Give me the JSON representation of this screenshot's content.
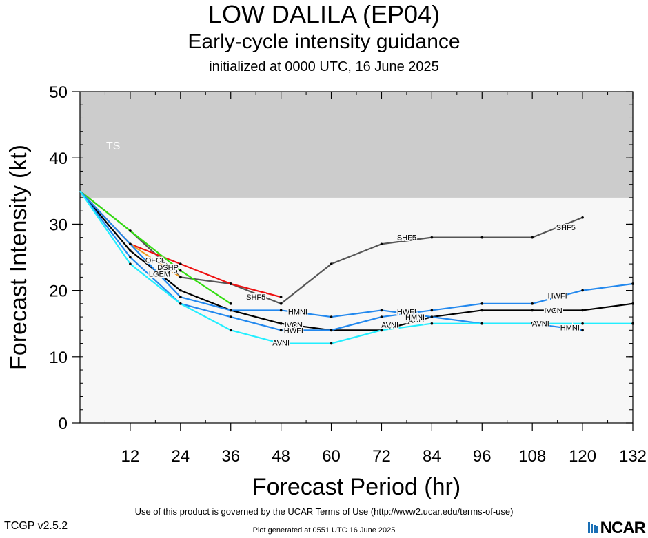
{
  "header": {
    "title": "LOW DALILA (EP04)",
    "subtitle": "Early-cycle intensity guidance",
    "initialized": "initialized at 0000 UTC, 16 June 2025"
  },
  "footer": {
    "terms": "Use of this product is governed by the UCAR Terms of Use (http://www2.ucar.edu/terms-of-use)",
    "version": "TCGP v2.5.2",
    "generated": "Plot generated at 0551 UTC   16 June 2025",
    "logo_text": "NCAR"
  },
  "chart_data": {
    "type": "line",
    "xlabel": "Forecast Period (hr)",
    "ylabel": "Forecast Intensity (kt)",
    "xlim": [
      0,
      132
    ],
    "ylim": [
      0,
      50
    ],
    "xticks": [
      12,
      24,
      36,
      48,
      60,
      72,
      84,
      96,
      108,
      120,
      132
    ],
    "yticks": [
      0,
      10,
      20,
      30,
      40,
      50
    ],
    "bands": [
      {
        "label": "TS",
        "from": 34,
        "to": 50,
        "color": "#cccccc"
      }
    ],
    "plot_background": "#f7f7f7",
    "series": [
      {
        "name": "SHF5",
        "color": "#555555",
        "x": [
          0,
          12,
          24,
          36,
          48,
          60,
          72,
          84,
          96,
          108,
          120
        ],
        "y": [
          35,
          29,
          22,
          21,
          18,
          24,
          27,
          28,
          28,
          28,
          31
        ]
      },
      {
        "name": "DSHP",
        "color": "#ee1111",
        "x": [
          0,
          12,
          24,
          36,
          48
        ],
        "y": [
          35,
          27,
          24,
          21,
          19
        ]
      },
      {
        "name": "OFCL",
        "color": "#33dd11",
        "x": [
          0,
          12,
          24,
          36
        ],
        "y": [
          35,
          29,
          23,
          18
        ]
      },
      {
        "name": "LGEM",
        "color": "#ee9922",
        "x": [
          0,
          12,
          24
        ],
        "y": [
          35,
          27,
          22
        ]
      },
      {
        "name": "IVCN",
        "color": "#000000",
        "x": [
          0,
          12,
          24,
          36,
          48,
          60,
          72,
          84,
          96,
          108,
          120,
          132
        ],
        "y": [
          35,
          26,
          20,
          17,
          15,
          14,
          14,
          16,
          17,
          17,
          17,
          18
        ]
      },
      {
        "name": "HWFI",
        "color": "#2288ee",
        "x": [
          0,
          12,
          24,
          36,
          48,
          60,
          72,
          84,
          96,
          108,
          120,
          132
        ],
        "y": [
          35,
          25,
          18,
          16,
          14,
          14,
          16,
          17,
          18,
          18,
          20,
          21
        ]
      },
      {
        "name": "HMNI",
        "color": "#2288ee",
        "x": [
          0,
          12,
          24,
          36,
          48,
          60,
          72,
          84,
          96,
          108,
          120
        ],
        "y": [
          35,
          27,
          19,
          17,
          17,
          16,
          17,
          16,
          15,
          15,
          14
        ]
      },
      {
        "name": "AVNI",
        "color": "#22eeff",
        "x": [
          0,
          12,
          24,
          36,
          48,
          60,
          72,
          84,
          96,
          108,
          120,
          132
        ],
        "y": [
          35,
          24,
          18,
          14,
          12,
          12,
          14,
          15,
          15,
          15,
          15,
          15
        ]
      }
    ]
  }
}
